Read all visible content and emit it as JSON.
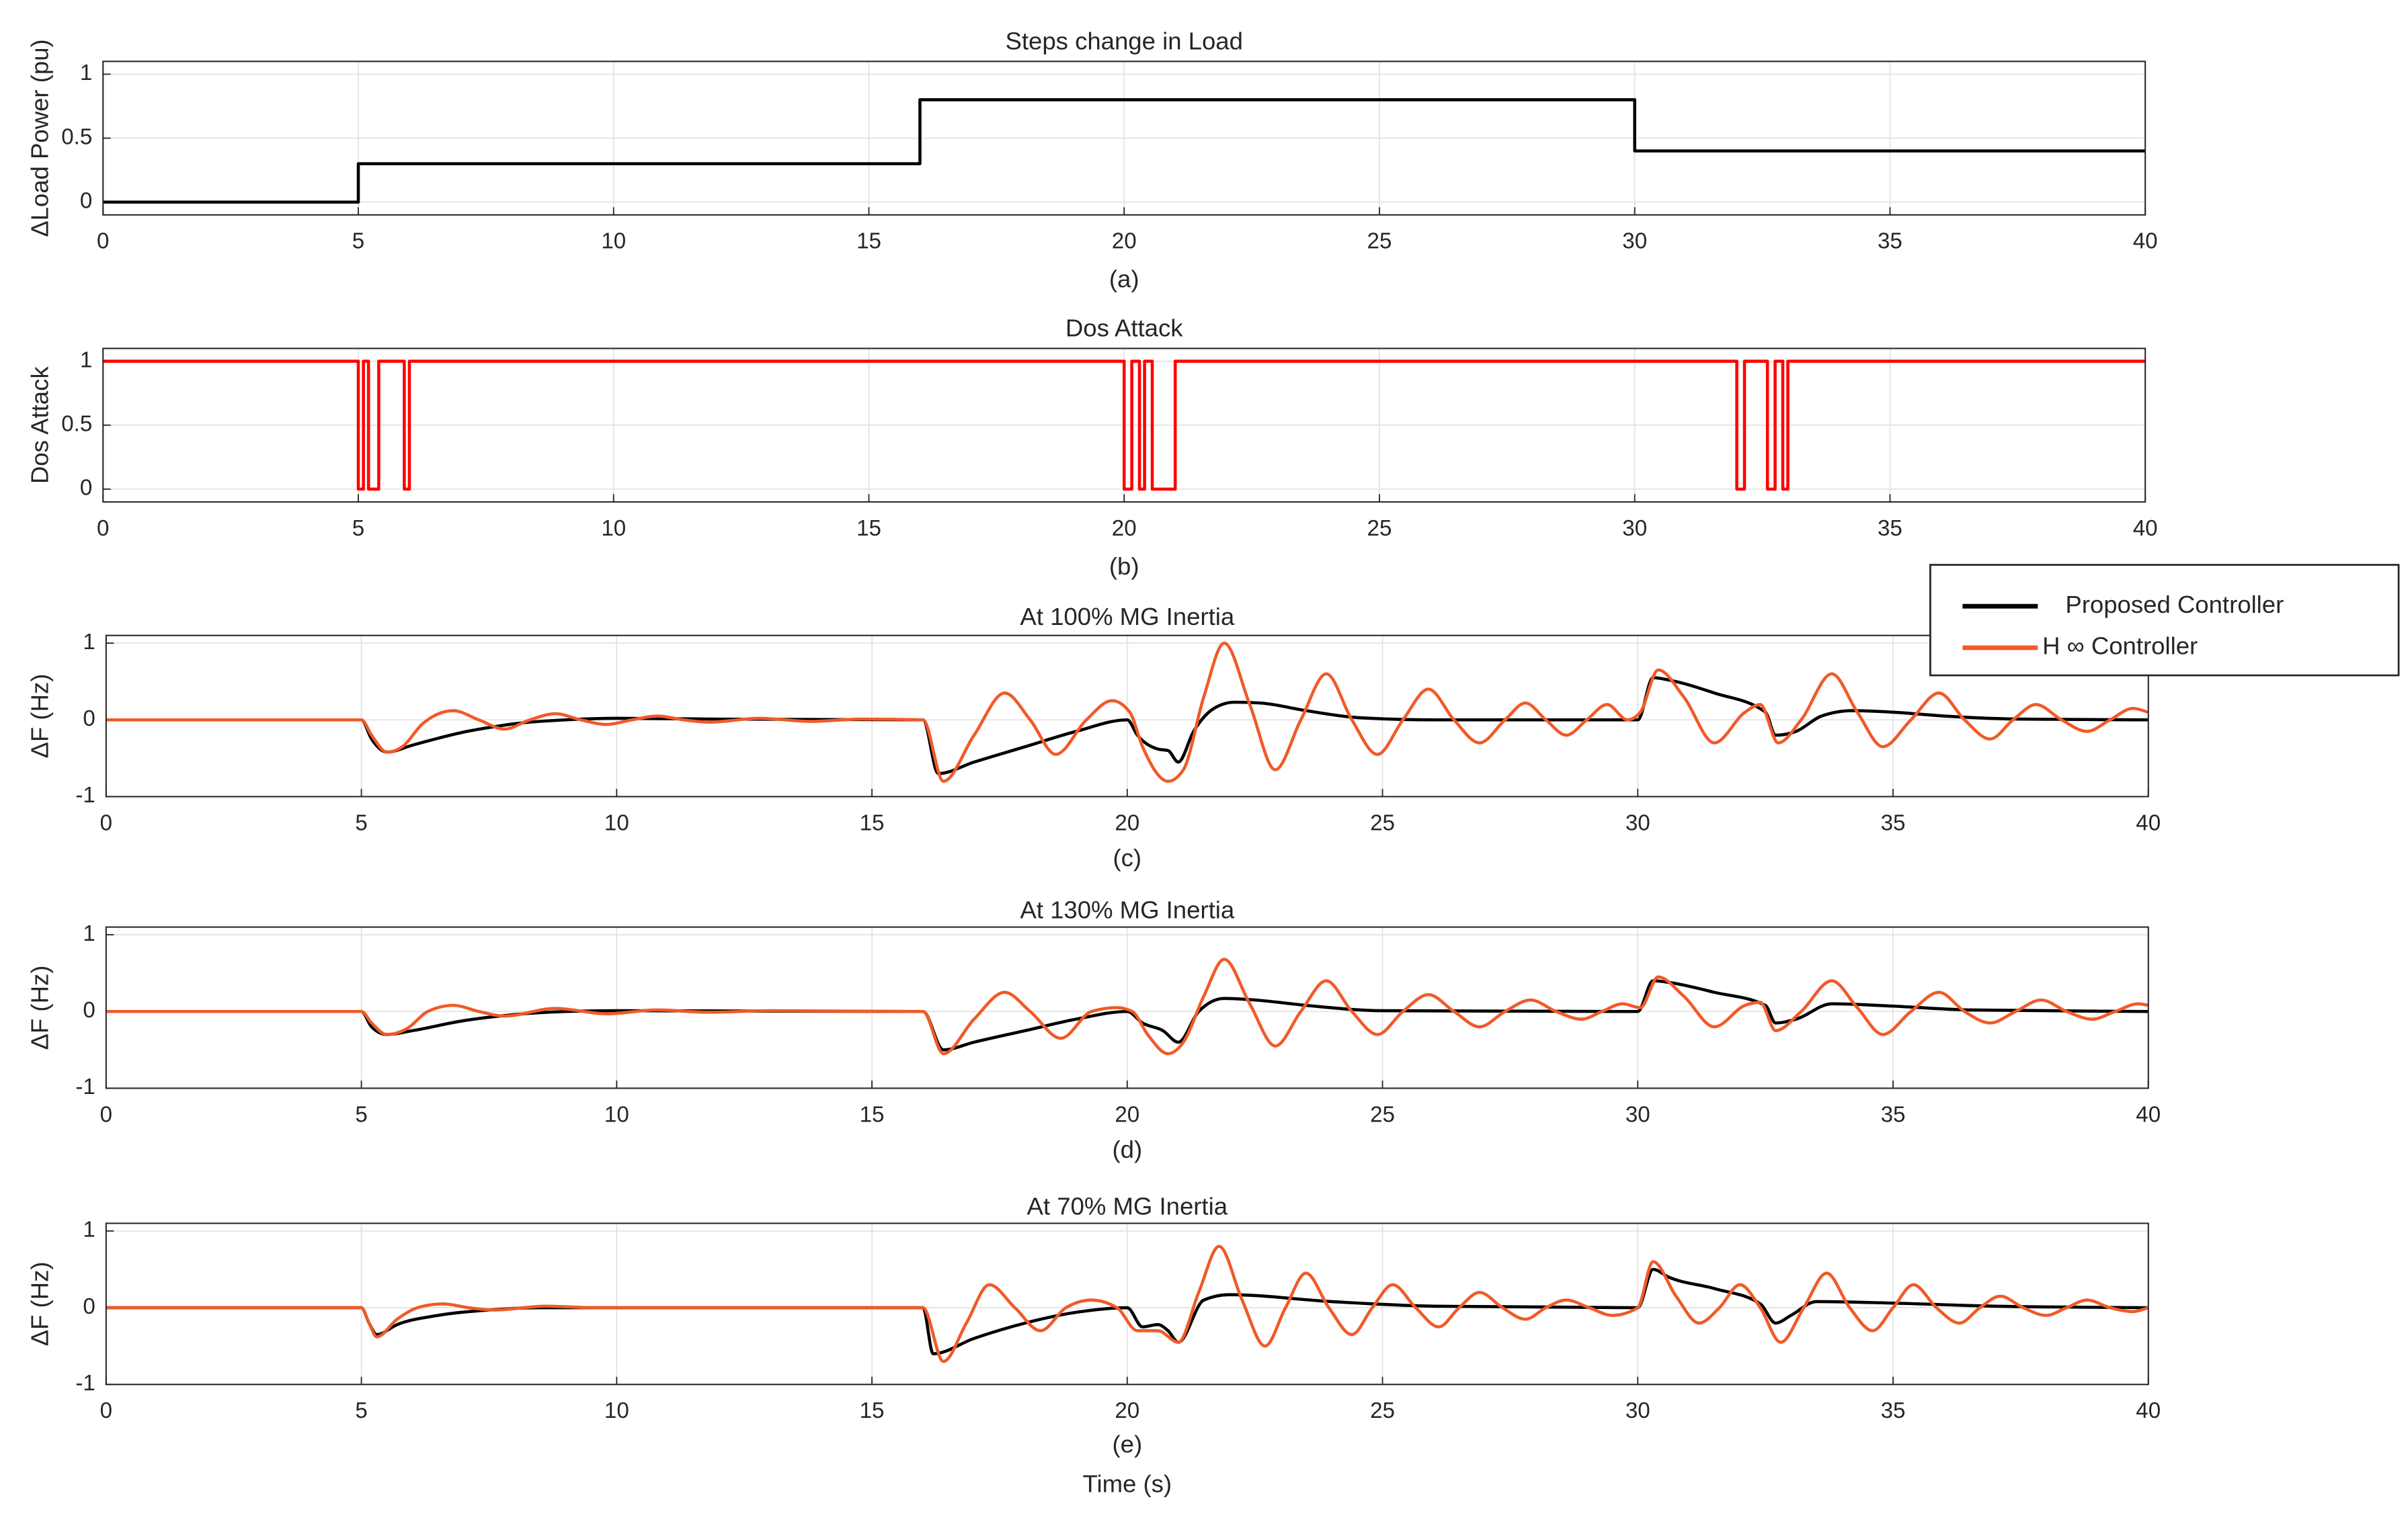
{
  "chart_data": [
    {
      "type": "line",
      "title": "Steps change in Load",
      "ylabel": "ΔLoad Power (pu)",
      "caption": "(a)",
      "xlim": [
        0,
        40
      ],
      "xticks": [
        0,
        5,
        10,
        15,
        20,
        25,
        30,
        35,
        40
      ],
      "ylim": [
        -0.1,
        1.1
      ],
      "yticks": [
        0,
        0.5,
        1
      ],
      "grid": true,
      "series": [
        {
          "color": "#000000",
          "x": [
            0,
            5,
            5,
            16,
            16,
            30,
            30,
            40
          ],
          "values": [
            0,
            0,
            0.3,
            0.3,
            0.8,
            0.8,
            0.4,
            0.4
          ]
        }
      ]
    },
    {
      "type": "line",
      "title": "Dos Attack",
      "ylabel": "Dos Attack",
      "caption": "(b)",
      "xlim": [
        0,
        40
      ],
      "xticks": [
        0,
        5,
        10,
        15,
        20,
        25,
        30,
        35,
        40
      ],
      "ylim": [
        -0.1,
        1.1
      ],
      "yticks": [
        0,
        0.5,
        1
      ],
      "grid": true,
      "series": [
        {
          "color": "#ff0000",
          "x": [
            0,
            5,
            5,
            5.1,
            5.1,
            5.2,
            5.2,
            5.4,
            5.4,
            5.9,
            5.9,
            6,
            6,
            20,
            20,
            20.15,
            20.15,
            20.3,
            20.3,
            20.4,
            20.4,
            20.55,
            20.55,
            21,
            21,
            32,
            32,
            32.15,
            32.15,
            32.6,
            32.6,
            32.75,
            32.75,
            32.9,
            32.9,
            33,
            33,
            40
          ],
          "values": [
            1,
            1,
            0,
            0,
            1,
            1,
            0,
            0,
            1,
            1,
            0,
            0,
            1,
            1,
            0,
            0,
            1,
            1,
            0,
            0,
            1,
            1,
            0,
            0,
            1,
            1,
            0,
            0,
            1,
            1,
            0,
            0,
            1,
            1,
            0,
            0,
            1,
            1
          ]
        }
      ]
    },
    {
      "type": "line",
      "title": "At 100% MG Inertia",
      "ylabel": "ΔF (Hz)",
      "caption": "(c)",
      "interpolation": "smooth",
      "legend": "upper right",
      "xlim": [
        0,
        40
      ],
      "xticks": [
        0,
        5,
        10,
        15,
        20,
        25,
        30,
        35,
        40
      ],
      "ylim": [
        -1,
        1.1
      ],
      "yticks": [
        -1,
        0,
        1
      ],
      "grid": true,
      "series": [
        {
          "name": "Proposed Controller",
          "color": "#000000",
          "x": [
            0,
            5,
            5.2,
            5.5,
            6,
            6.5,
            7,
            7.5,
            8,
            9,
            10,
            12,
            16,
            16.3,
            17,
            18,
            19,
            20,
            20.2,
            20.6,
            20.8,
            21,
            21.3,
            21.7,
            22.1,
            22.6,
            23.5,
            24.5,
            26,
            30,
            30.3,
            30.6,
            31.5,
            32.5,
            32.7,
            33.1,
            33.6,
            34.2,
            35,
            36,
            37.5,
            40
          ],
          "values": [
            0,
            0,
            -0.25,
            -0.42,
            -0.33,
            -0.24,
            -0.16,
            -0.1,
            -0.05,
            0,
            0.02,
            0.01,
            0,
            -0.7,
            -0.55,
            -0.35,
            -0.15,
            0,
            -0.2,
            -0.38,
            -0.4,
            -0.55,
            -0.15,
            0.15,
            0.23,
            0.22,
            0.12,
            0.03,
            0,
            0,
            0.55,
            0.52,
            0.35,
            0.1,
            -0.2,
            -0.15,
            0.05,
            0.12,
            0.1,
            0.05,
            0.01,
            0
          ]
        },
        {
          "name": "H ∞ Controller",
          "color": "#f05a28",
          "x": [
            0,
            5,
            5.2,
            5.5,
            5.8,
            6.2,
            6.8,
            7.3,
            7.8,
            8.3,
            8.8,
            9.3,
            9.8,
            10.3,
            10.8,
            11.3,
            11.8,
            12.8,
            13.8,
            14.8,
            16,
            16.4,
            17,
            17.6,
            18.1,
            18.6,
            19.2,
            19.7,
            20.05,
            20.3,
            20.8,
            21.1,
            21.5,
            21.9,
            22.4,
            22.9,
            23.4,
            23.9,
            24.4,
            24.9,
            25.4,
            25.9,
            26.4,
            26.9,
            27.4,
            27.8,
            28.2,
            28.6,
            29,
            29.4,
            29.8,
            30.05,
            30.4,
            30.9,
            31.5,
            32.1,
            32.4,
            32.75,
            33.2,
            33.8,
            34.3,
            34.8,
            35.35,
            35.9,
            36.4,
            36.9,
            37.35,
            37.8,
            38.3,
            38.8,
            39.25,
            39.7,
            40
          ],
          "values": [
            0,
            0,
            -0.2,
            -0.42,
            -0.35,
            -0.05,
            0.12,
            0,
            -0.12,
            0,
            0.08,
            0,
            -0.06,
            0,
            0.05,
            0,
            -0.03,
            0.02,
            -0.02,
            0.01,
            0,
            -0.8,
            -0.2,
            0.35,
            0,
            -0.45,
            0,
            0.25,
            0.1,
            -0.35,
            -0.8,
            -0.65,
            0.3,
            1,
            0.2,
            -0.65,
            0,
            0.6,
            0,
            -0.45,
            0,
            0.4,
            0,
            -0.3,
            0,
            0.22,
            0,
            -0.2,
            0,
            0.2,
            0,
            0.1,
            0.65,
            0.3,
            -0.3,
            0.1,
            0.2,
            -0.3,
            0,
            0.6,
            0.1,
            -0.35,
            0,
            0.35,
            0,
            -0.25,
            0,
            0.2,
            0,
            -0.15,
            0,
            0.15,
            0.1
          ]
        }
      ]
    },
    {
      "type": "line",
      "title": "At 130% MG Inertia",
      "ylabel": "ΔF (Hz)",
      "caption": "(d)",
      "interpolation": "smooth",
      "xlim": [
        0,
        40
      ],
      "xticks": [
        0,
        5,
        10,
        15,
        20,
        25,
        30,
        35,
        40
      ],
      "ylim": [
        -1,
        1.1
      ],
      "yticks": [
        -1,
        0,
        1
      ],
      "grid": true,
      "series": [
        {
          "color": "#000000",
          "x": [
            0,
            5,
            5.2,
            5.5,
            6,
            7,
            8,
            9,
            10,
            16,
            16.4,
            17,
            18,
            19,
            20,
            20.3,
            20.7,
            21,
            21.4,
            21.9,
            22.5,
            23.5,
            25,
            30,
            30.3,
            30.6,
            31.5,
            32.5,
            32.7,
            33.1,
            33.8,
            35,
            36.5,
            40
          ],
          "values": [
            0,
            0,
            -0.2,
            -0.3,
            -0.25,
            -0.12,
            -0.04,
            0,
            0.01,
            0,
            -0.5,
            -0.4,
            -0.25,
            -0.1,
            0,
            -0.15,
            -0.25,
            -0.4,
            0,
            0.17,
            0.15,
            0.08,
            0.01,
            0,
            0.4,
            0.38,
            0.25,
            0.08,
            -0.15,
            -0.1,
            0.1,
            0.07,
            0.02,
            0
          ]
        },
        {
          "color": "#f05a28",
          "x": [
            0,
            5,
            5.2,
            5.5,
            5.9,
            6.3,
            6.8,
            7.3,
            7.8,
            8.8,
            9.8,
            10.8,
            11.8,
            13,
            16,
            16.4,
            17,
            17.6,
            18.1,
            18.7,
            19.3,
            19.8,
            20.1,
            20.4,
            20.8,
            21.1,
            21.5,
            21.9,
            22.4,
            22.9,
            23.4,
            23.9,
            24.4,
            24.9,
            25.4,
            25.9,
            26.4,
            26.9,
            27.4,
            27.9,
            28.4,
            28.9,
            29.3,
            29.7,
            30.05,
            30.4,
            30.9,
            31.5,
            32.1,
            32.4,
            32.7,
            33.2,
            33.8,
            34.3,
            34.8,
            35.35,
            35.9,
            36.4,
            36.9,
            37.4,
            37.9,
            38.4,
            38.9,
            39.35,
            39.8,
            40
          ],
          "values": [
            0,
            0,
            -0.15,
            -0.3,
            -0.22,
            0,
            0.08,
            0,
            -0.06,
            0.04,
            -0.03,
            0.02,
            -0.01,
            0.01,
            0,
            -0.55,
            -0.1,
            0.25,
            0,
            -0.35,
            0,
            0.05,
            0,
            -0.3,
            -0.55,
            -0.4,
            0.2,
            0.68,
            0.1,
            -0.45,
            0,
            0.4,
            0,
            -0.3,
            0,
            0.22,
            0,
            -0.2,
            0,
            0.15,
            0,
            -0.1,
            0,
            0.1,
            0.05,
            0.45,
            0.2,
            -0.2,
            0.08,
            0.12,
            -0.25,
            0,
            0.4,
            0.05,
            -0.3,
            0,
            0.25,
            0,
            -0.15,
            0,
            0.15,
            0,
            -0.1,
            0,
            0.1,
            0.08
          ]
        }
      ]
    },
    {
      "type": "line",
      "title": "At 70% MG Inertia",
      "ylabel": "ΔF (Hz)",
      "caption": "(e)",
      "xlabel": "Time (s)",
      "interpolation": "smooth",
      "xlim": [
        0,
        40
      ],
      "xticks": [
        0,
        5,
        10,
        15,
        20,
        25,
        30,
        35,
        40
      ],
      "ylim": [
        -1,
        1.1
      ],
      "yticks": [
        -1,
        0,
        1
      ],
      "grid": true,
      "series": [
        {
          "color": "#000000",
          "x": [
            0,
            5,
            5.15,
            5.3,
            5.7,
            6.5,
            7.5,
            8.5,
            10,
            16,
            16.2,
            17,
            18,
            19,
            20,
            20.3,
            20.6,
            20.8,
            21,
            21.5,
            22,
            24,
            26,
            30,
            30.3,
            30.6,
            31.5,
            32.4,
            32.7,
            33,
            33.5,
            35,
            37,
            40
          ],
          "values": [
            0,
            0,
            -0.2,
            -0.35,
            -0.22,
            -0.1,
            -0.03,
            0,
            0,
            0,
            -0.6,
            -0.4,
            -0.2,
            -0.06,
            0,
            -0.25,
            -0.22,
            -0.3,
            -0.45,
            0.1,
            0.17,
            0.08,
            0.02,
            0,
            0.5,
            0.4,
            0.25,
            0.05,
            -0.2,
            -0.1,
            0.08,
            0.06,
            0.02,
            0
          ]
        },
        {
          "color": "#f05a28",
          "x": [
            0,
            5,
            5.15,
            5.3,
            5.7,
            6.1,
            6.6,
            7.1,
            7.6,
            8.6,
            9.6,
            11,
            16,
            16.4,
            16.85,
            17.3,
            17.8,
            18.3,
            18.8,
            19.3,
            19.8,
            20.2,
            20.6,
            21,
            21.4,
            21.8,
            22.25,
            22.7,
            23.1,
            23.5,
            23.95,
            24.4,
            24.8,
            25.2,
            25.65,
            26.1,
            26.5,
            26.9,
            27.35,
            27.8,
            28.2,
            28.6,
            29.05,
            29.5,
            30,
            30.3,
            30.75,
            31.2,
            31.6,
            32,
            32.4,
            32.8,
            33.25,
            33.7,
            34.15,
            34.6,
            35,
            35.4,
            35.85,
            36.3,
            36.7,
            37.1,
            37.55,
            38,
            38.4,
            38.8,
            39.25,
            39.7,
            40
          ],
          "values": [
            0,
            0,
            -0.2,
            -0.38,
            -0.15,
            0,
            0.05,
            0,
            -0.03,
            0.02,
            0,
            0,
            0,
            -0.7,
            -0.2,
            0.3,
            0,
            -0.3,
            0,
            0.1,
            0,
            -0.3,
            -0.3,
            -0.45,
            0.2,
            0.8,
            0.1,
            -0.5,
            0,
            0.45,
            0,
            -0.35,
            0,
            0.3,
            0,
            -0.25,
            0,
            0.2,
            0,
            -0.15,
            0,
            0.1,
            0,
            -0.1,
            0,
            0.6,
            0.15,
            -0.2,
            0,
            0.3,
            0,
            -0.45,
            0,
            0.45,
            0,
            -0.3,
            0,
            0.3,
            0,
            -0.2,
            0,
            0.15,
            0,
            -0.1,
            0,
            0.1,
            0,
            -0.05,
            0
          ]
        }
      ]
    }
  ]
}
